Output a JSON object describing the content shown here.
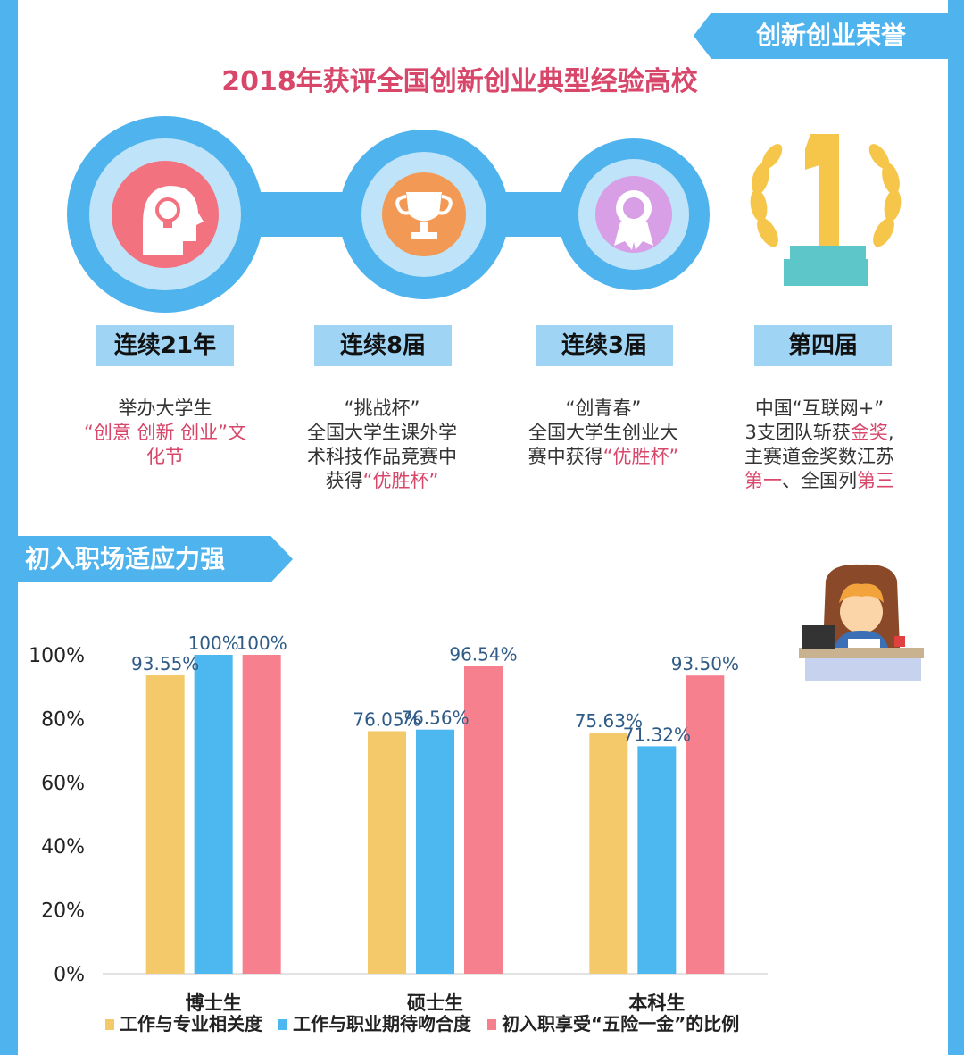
{
  "banners": {
    "honors": "创新创业荣誉",
    "adapt": "初入职场适应力强"
  },
  "title": "2018年获评全国创新创业典型经验高校",
  "achievements": [
    {
      "tag": "连续21年",
      "lines": [
        {
          "parts": [
            {
              "t": "举办大学生",
              "hl": false
            }
          ]
        },
        {
          "parts": [
            {
              "t": "“创意 创新 创业”文",
              "hl": true
            }
          ]
        },
        {
          "parts": [
            {
              "t": "化节",
              "hl": true
            }
          ]
        }
      ]
    },
    {
      "tag": "连续8届",
      "lines": [
        {
          "parts": [
            {
              "t": "“挑战杯”",
              "hl": false
            }
          ]
        },
        {
          "parts": [
            {
              "t": "全国大学生课外学",
              "hl": false
            }
          ]
        },
        {
          "parts": [
            {
              "t": "术科技作品竞赛中",
              "hl": false
            }
          ]
        },
        {
          "parts": [
            {
              "t": "获得",
              "hl": false
            },
            {
              "t": "“优胜杯”",
              "hl": true
            }
          ]
        }
      ]
    },
    {
      "tag": "连续3届",
      "lines": [
        {
          "parts": [
            {
              "t": "“创青春”",
              "hl": false
            }
          ]
        },
        {
          "parts": [
            {
              "t": "全国大学生创业大",
              "hl": false
            }
          ]
        },
        {
          "parts": [
            {
              "t": "赛中获得",
              "hl": false
            },
            {
              "t": "“优胜杯”",
              "hl": true
            }
          ]
        }
      ]
    },
    {
      "tag": "第四届",
      "lines": [
        {
          "parts": [
            {
              "t": "中国“互联网+”",
              "hl": false
            }
          ]
        },
        {
          "parts": [
            {
              "t": "3支团队斩获",
              "hl": false
            },
            {
              "t": "金奖",
              "hl": true
            },
            {
              "t": ",",
              "hl": false
            }
          ]
        },
        {
          "parts": [
            {
              "t": "主赛道金奖数江苏",
              "hl": false
            }
          ]
        },
        {
          "parts": [
            {
              "t": "第一",
              "hl": true
            },
            {
              "t": "、全国列",
              "hl": false
            },
            {
              "t": "第三",
              "hl": true
            }
          ]
        }
      ]
    }
  ],
  "colors": {
    "blue": "#4fb3ee",
    "pink": "#d8466a",
    "yellow": "#f3c96a",
    "barBlue": "#4db8f0",
    "barPink": "#f7808f",
    "label": "#2f5b86"
  },
  "chart_data": {
    "type": "bar",
    "categories": [
      "博士生",
      "硕士生",
      "本科生"
    ],
    "series": [
      {
        "name": "工作与专业相关度",
        "values": [
          93.55,
          76.05,
          75.63
        ],
        "labels": [
          "93.55%",
          "76.05%",
          "75.63%"
        ],
        "color": "#f3c96a"
      },
      {
        "name": "工作与职业期待吻合度",
        "values": [
          100,
          76.56,
          71.32
        ],
        "labels": [
          "100%",
          "76.56%",
          "71.32%"
        ],
        "color": "#4db8f0"
      },
      {
        "name": "初入职享受“五险一金”的比例",
        "values": [
          100,
          96.54,
          93.5
        ],
        "labels": [
          "100%",
          "96.54%",
          "93.50%"
        ],
        "color": "#f7808f"
      }
    ],
    "yticks": [
      "0%",
      "20%",
      "40%",
      "60%",
      "80%",
      "100%"
    ],
    "ylim": [
      0,
      100
    ],
    "legend": "bottom"
  }
}
